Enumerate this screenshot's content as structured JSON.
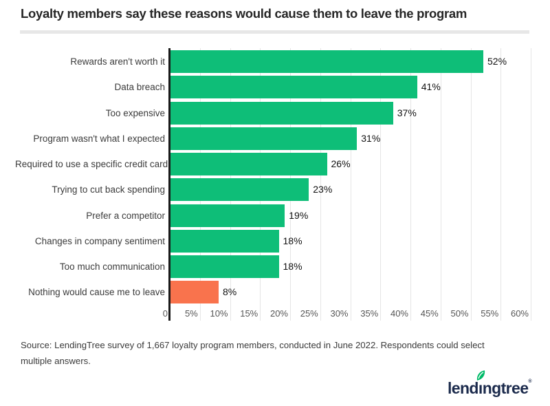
{
  "title": "Loyalty members say these reasons would cause them to leave the program",
  "chart_data": {
    "type": "bar",
    "orientation": "horizontal",
    "title": "Loyalty members say these reasons would cause them to leave the program",
    "categories": [
      "Rewards aren't worth it",
      "Data breach",
      "Too expensive",
      "Program wasn't what I expected",
      "Required to use a specific credit card",
      "Trying to cut back spending",
      "Prefer a competitor",
      "Changes in company sentiment",
      "Too much communication",
      "Nothing would cause me to leave"
    ],
    "values": [
      52,
      41,
      37,
      31,
      26,
      23,
      19,
      18,
      18,
      8
    ],
    "value_labels": [
      "52%",
      "41%",
      "37%",
      "31%",
      "26%",
      "23%",
      "19%",
      "18%",
      "18%",
      "8%"
    ],
    "bar_color": "#0EBE78",
    "highlight_color": "#F9734D",
    "highlight_index": 9,
    "xlabel": "",
    "ylabel": "",
    "xlim": [
      0,
      60
    ],
    "x_ticks": [
      "0",
      "5%",
      "10%",
      "15%",
      "20%",
      "25%",
      "30%",
      "35%",
      "40%",
      "45%",
      "50%",
      "55%",
      "60%"
    ],
    "grid": true,
    "legend": false
  },
  "source": "Source: LendingTree survey of 1,667 loyalty program members, conducted in June 2022. Respondents could select multiple answers.",
  "logo": {
    "text_before": "lend",
    "dotless_i": "ı",
    "text_after": "ngtree",
    "registered": "®",
    "brand_navy": "#1B2A4C",
    "leaf_green": "#00BA68"
  }
}
